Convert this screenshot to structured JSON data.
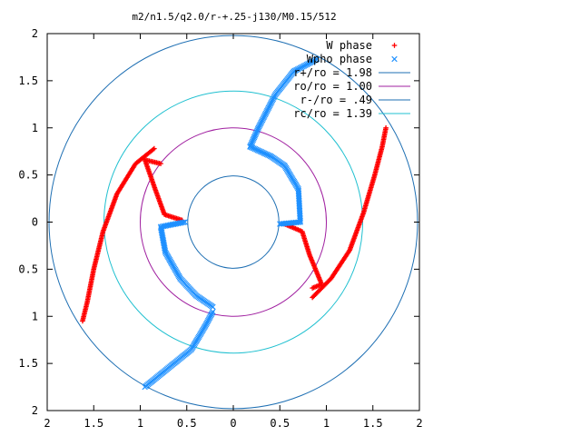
{
  "chart_data": {
    "type": "scatter",
    "title": "m2/n1.5/q2.0/r-+.25-j130/M0.15/512",
    "xlabel": "",
    "ylabel": "",
    "xlim": [
      -2,
      2
    ],
    "ylim": [
      -2,
      2
    ],
    "x_tick_labels": [
      "2",
      "1.5",
      "1",
      "0.5",
      "0",
      "0.5",
      "1",
      "1.5",
      "2"
    ],
    "y_tick_labels": [
      "2",
      "1.5",
      "1",
      "0.5",
      "0",
      "0.5",
      "1",
      "1.5",
      "2"
    ],
    "grid": false,
    "legend_position": "top-right",
    "series": [
      {
        "name": "W phase",
        "marker": "plus",
        "color": "#ff0000",
        "arms": [
          [
            [
              -0.85,
              0.78
            ],
            [
              -1.05,
              0.62
            ],
            [
              -1.25,
              0.3
            ],
            [
              -1.4,
              -0.1
            ],
            [
              -1.5,
              -0.5
            ],
            [
              -1.57,
              -0.85
            ],
            [
              -1.62,
              -1.05
            ]
          ],
          [
            [
              -0.78,
              0.62
            ],
            [
              -0.95,
              0.66
            ],
            [
              -0.84,
              0.35
            ],
            [
              -0.74,
              0.08
            ],
            [
              -0.55,
              0.02
            ]
          ],
          [
            [
              0.85,
              -0.8
            ],
            [
              1.05,
              -0.6
            ],
            [
              1.25,
              -0.3
            ],
            [
              1.4,
              0.1
            ],
            [
              1.52,
              0.5
            ],
            [
              1.6,
              0.8
            ],
            [
              1.64,
              1.0
            ]
          ],
          [
            [
              0.85,
              -0.7
            ],
            [
              0.95,
              -0.66
            ],
            [
              0.82,
              -0.35
            ],
            [
              0.74,
              -0.1
            ],
            [
              0.55,
              -0.02
            ]
          ]
        ]
      },
      {
        "name": "Wpho phase",
        "marker": "cross",
        "color": "#1e90ff",
        "arms": [
          [
            [
              0.18,
              0.8
            ],
            [
              0.27,
              1.0
            ],
            [
              0.45,
              1.35
            ],
            [
              0.65,
              1.6
            ],
            [
              0.9,
              1.73
            ]
          ],
          [
            [
              0.18,
              0.8
            ],
            [
              0.4,
              0.7
            ],
            [
              0.55,
              0.6
            ],
            [
              0.7,
              0.35
            ],
            [
              0.72,
              0.0
            ],
            [
              0.5,
              -0.02
            ]
          ],
          [
            [
              -0.22,
              -0.95
            ],
            [
              -0.3,
              -1.1
            ],
            [
              -0.45,
              -1.35
            ],
            [
              -0.7,
              -1.55
            ],
            [
              -0.95,
              -1.75
            ]
          ],
          [
            [
              -0.22,
              -0.9
            ],
            [
              -0.4,
              -0.78
            ],
            [
              -0.57,
              -0.6
            ],
            [
              -0.73,
              -0.32
            ],
            [
              -0.78,
              -0.05
            ],
            [
              -0.52,
              0.0
            ]
          ]
        ]
      },
      {
        "name": "r+/ro = 1.98",
        "type": "circle",
        "radius": 1.98,
        "color": "#1e6fb3"
      },
      {
        "name": "ro/ro = 1.00",
        "type": "circle",
        "radius": 1.0,
        "color": "#a020a0"
      },
      {
        "name": "r-/ro = .49",
        "type": "circle",
        "radius": 0.49,
        "color": "#1e6fb3"
      },
      {
        "name": "rc/ro = 1.39",
        "type": "circle",
        "radius": 1.39,
        "color": "#20c0d0"
      }
    ]
  }
}
